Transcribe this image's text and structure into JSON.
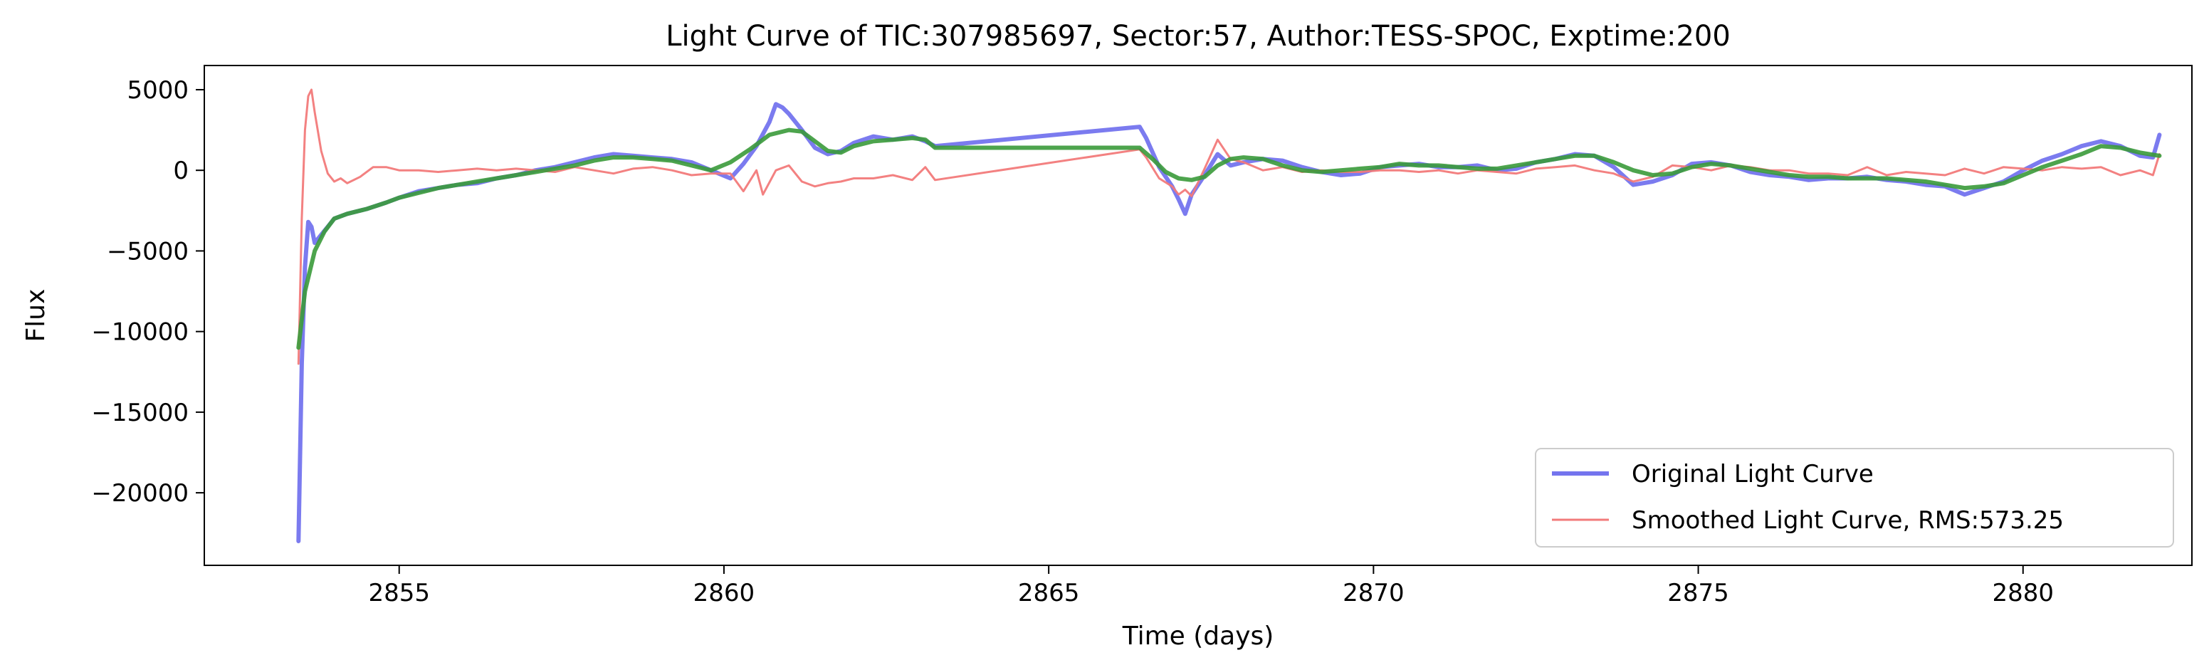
{
  "chart_data": {
    "type": "line",
    "title": "Light Curve of TIC:307985697, Sector:57, Author:TESS-SPOC, Exptime:200",
    "xlabel": "Time (days)",
    "ylabel": "Flux",
    "xlim": [
      2852.0,
      2882.6
    ],
    "ylim": [
      -24500,
      6500
    ],
    "xticks": [
      2855,
      2860,
      2865,
      2870,
      2875,
      2880
    ],
    "yticks": [
      5000,
      0,
      -5000,
      -10000,
      -15000,
      -20000
    ],
    "xtick_labels": [
      "2855",
      "2860",
      "2865",
      "2870",
      "2875",
      "2880"
    ],
    "ytick_labels": [
      "5000",
      "0",
      "−5000",
      "−10000",
      "−15000",
      "−20000"
    ],
    "grid": false,
    "legend_position": "lower-right",
    "series": [
      {
        "name": "Original Light Curve",
        "color": "#7474ee",
        "x": [
          2853.45,
          2853.5,
          2853.55,
          2853.6,
          2853.65,
          2853.7,
          2853.8,
          2853.9,
          2854.0,
          2854.2,
          2854.5,
          2854.8,
          2855.0,
          2855.3,
          2855.6,
          2855.9,
          2856.2,
          2856.5,
          2856.8,
          2857.1,
          2857.4,
          2857.7,
          2858.0,
          2858.3,
          2858.6,
          2858.9,
          2859.2,
          2859.5,
          2859.8,
          2860.1,
          2860.3,
          2860.5,
          2860.7,
          2860.8,
          2860.9,
          2861.0,
          2861.2,
          2861.4,
          2861.6,
          2861.8,
          2862.0,
          2862.3,
          2862.6,
          2862.9,
          2863.1,
          2863.25,
          2866.4,
          2866.5,
          2866.7,
          2866.9,
          2867.0,
          2867.1,
          2867.2,
          2867.4,
          2867.6,
          2867.8,
          2868.0,
          2868.3,
          2868.6,
          2868.9,
          2869.2,
          2869.5,
          2869.8,
          2870.1,
          2870.4,
          2870.7,
          2871.0,
          2871.3,
          2871.6,
          2871.9,
          2872.2,
          2872.5,
          2872.8,
          2873.1,
          2873.4,
          2873.7,
          2874.0,
          2874.3,
          2874.6,
          2874.9,
          2875.2,
          2875.5,
          2875.8,
          2876.1,
          2876.4,
          2876.7,
          2877.0,
          2877.3,
          2877.6,
          2877.9,
          2878.2,
          2878.5,
          2878.8,
          2879.1,
          2879.4,
          2879.7,
          2880.0,
          2880.3,
          2880.6,
          2880.9,
          2881.2,
          2881.5,
          2881.8,
          2882.0,
          2882.1
        ],
        "y": [
          -23000,
          -12000,
          -6000,
          -3200,
          -3500,
          -4500,
          -4000,
          -3500,
          -3000,
          -2700,
          -2400,
          -2000,
          -1700,
          -1300,
          -1100,
          -900,
          -800,
          -500,
          -300,
          0,
          200,
          500,
          800,
          1000,
          900,
          800,
          700,
          500,
          0,
          -500,
          400,
          1500,
          3000,
          4100,
          3900,
          3500,
          2500,
          1400,
          1000,
          1200,
          1700,
          2100,
          1900,
          2100,
          1800,
          1500,
          2700,
          2000,
          200,
          -1000,
          -1800,
          -2700,
          -1500,
          -300,
          1000,
          300,
          500,
          700,
          600,
          200,
          -100,
          -300,
          -200,
          200,
          300,
          400,
          200,
          200,
          300,
          0,
          100,
          500,
          700,
          1000,
          900,
          200,
          -900,
          -700,
          -300,
          400,
          500,
          300,
          -100,
          -300,
          -400,
          -600,
          -500,
          -500,
          -400,
          -600,
          -700,
          -900,
          -1000,
          -1500,
          -1100,
          -700,
          0,
          600,
          1000,
          1500,
          1800,
          1500,
          900,
          800,
          2200
        ]
      },
      {
        "name": "Smoothed Light Curve, RMS:573.25",
        "color": "#f27a7a",
        "x": [
          2853.45,
          2853.5,
          2853.55,
          2853.6,
          2853.65,
          2853.7,
          2853.8,
          2853.9,
          2854.0,
          2854.1,
          2854.2,
          2854.4,
          2854.6,
          2854.8,
          2855.0,
          2855.3,
          2855.6,
          2855.9,
          2856.2,
          2856.5,
          2856.8,
          2857.1,
          2857.4,
          2857.7,
          2858.0,
          2858.3,
          2858.6,
          2858.9,
          2859.2,
          2859.5,
          2859.8,
          2860.1,
          2860.3,
          2860.5,
          2860.6,
          2860.8,
          2861.0,
          2861.2,
          2861.4,
          2861.6,
          2861.8,
          2862.0,
          2862.3,
          2862.6,
          2862.9,
          2863.1,
          2863.25,
          2866.4,
          2866.5,
          2866.7,
          2866.9,
          2867.0,
          2867.1,
          2867.2,
          2867.4,
          2867.6,
          2867.8,
          2868.0,
          2868.3,
          2868.6,
          2868.9,
          2869.2,
          2869.5,
          2869.8,
          2870.1,
          2870.4,
          2870.7,
          2871.0,
          2871.3,
          2871.6,
          2871.9,
          2872.2,
          2872.5,
          2872.8,
          2873.1,
          2873.4,
          2873.7,
          2874.0,
          2874.3,
          2874.6,
          2874.9,
          2875.2,
          2875.5,
          2875.8,
          2876.1,
          2876.4,
          2876.7,
          2877.0,
          2877.3,
          2877.6,
          2877.9,
          2878.2,
          2878.5,
          2878.8,
          2879.1,
          2879.4,
          2879.7,
          2880.0,
          2880.3,
          2880.6,
          2880.9,
          2881.2,
          2881.5,
          2881.8,
          2882.0,
          2882.1
        ],
        "y": [
          -12000,
          -3000,
          2500,
          4600,
          5000,
          3600,
          1200,
          -200,
          -700,
          -500,
          -800,
          -400,
          200,
          200,
          0,
          0,
          -100,
          0,
          100,
          0,
          100,
          0,
          -100,
          200,
          0,
          -200,
          100,
          200,
          0,
          -300,
          -200,
          -200,
          -1300,
          0,
          -1500,
          0,
          300,
          -700,
          -1000,
          -800,
          -700,
          -500,
          -500,
          -300,
          -600,
          200,
          -600,
          1300,
          800,
          -500,
          -1000,
          -1500,
          -1200,
          -1600,
          100,
          1900,
          700,
          500,
          0,
          200,
          -100,
          0,
          -100,
          -100,
          0,
          0,
          -100,
          0,
          -200,
          0,
          -100,
          -200,
          100,
          200,
          300,
          0,
          -200,
          -700,
          -400,
          300,
          200,
          0,
          300,
          200,
          0,
          0,
          -200,
          -200,
          -300,
          200,
          -300,
          -100,
          -200,
          -300,
          100,
          -200,
          200,
          100,
          0,
          200,
          100,
          200,
          -300,
          0,
          -300,
          1000
        ]
      },
      {
        "color": "#3a9a3a",
        "x": [
          2853.45,
          2853.55,
          2853.7,
          2853.85,
          2854.0,
          2854.2,
          2854.5,
          2854.8,
          2855.0,
          2855.3,
          2855.6,
          2855.9,
          2856.2,
          2856.5,
          2856.8,
          2857.1,
          2857.4,
          2857.7,
          2858.0,
          2858.3,
          2858.6,
          2858.9,
          2859.2,
          2859.5,
          2859.8,
          2860.1,
          2860.4,
          2860.7,
          2861.0,
          2861.2,
          2861.4,
          2861.6,
          2861.8,
          2862.0,
          2862.3,
          2862.6,
          2862.9,
          2863.1,
          2863.25,
          2866.4,
          2866.6,
          2866.8,
          2867.0,
          2867.2,
          2867.4,
          2867.6,
          2867.8,
          2868.0,
          2868.3,
          2868.6,
          2868.9,
          2869.2,
          2869.5,
          2869.8,
          2870.1,
          2870.4,
          2870.7,
          2871.0,
          2871.3,
          2871.6,
          2871.9,
          2872.2,
          2872.5,
          2872.8,
          2873.1,
          2873.4,
          2873.7,
          2874.0,
          2874.3,
          2874.6,
          2874.9,
          2875.2,
          2875.5,
          2875.8,
          2876.1,
          2876.4,
          2876.7,
          2877.0,
          2877.3,
          2877.6,
          2877.9,
          2878.2,
          2878.5,
          2878.8,
          2879.1,
          2879.4,
          2879.7,
          2880.0,
          2880.3,
          2880.6,
          2880.9,
          2881.2,
          2881.5,
          2881.8,
          2882.1
        ],
        "y": [
          -11000,
          -7500,
          -5000,
          -3800,
          -3000,
          -2700,
          -2400,
          -2000,
          -1700,
          -1400,
          -1100,
          -900,
          -700,
          -500,
          -300,
          -100,
          100,
          300,
          600,
          800,
          800,
          700,
          600,
          300,
          0,
          500,
          1300,
          2200,
          2500,
          2400,
          1800,
          1200,
          1100,
          1500,
          1800,
          1900,
          2000,
          1900,
          1400,
          1400,
          700,
          -100,
          -500,
          -600,
          -400,
          300,
          700,
          800,
          700,
          300,
          0,
          -100,
          0,
          100,
          200,
          400,
          300,
          300,
          200,
          100,
          100,
          300,
          500,
          700,
          900,
          900,
          500,
          0,
          -300,
          -200,
          200,
          400,
          300,
          100,
          -100,
          -300,
          -400,
          -400,
          -500,
          -500,
          -500,
          -600,
          -700,
          -900,
          -1100,
          -1000,
          -800,
          -300,
          200,
          600,
          1000,
          1500,
          1400,
          1100,
          900
        ]
      }
    ]
  }
}
